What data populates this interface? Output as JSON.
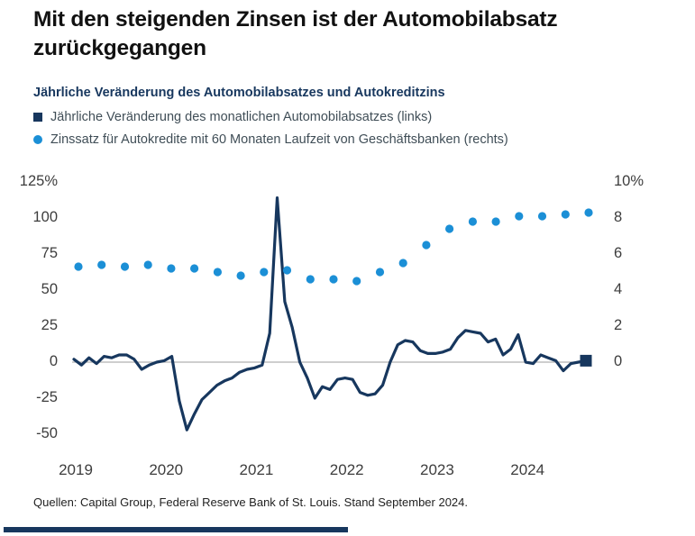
{
  "page": {
    "title": "Mit den steigenden Zinsen ist der Automobilabsatz zurückgegangen",
    "subtitle": "Jährliche Veränderung des Automobilabsatzes und Autokreditzins",
    "legend": [
      {
        "marker": "square",
        "color": "#17375e",
        "label": "Jährliche Veränderung des monatlichen Automobilabsatzes (links)"
      },
      {
        "marker": "circle",
        "color": "#1b8fd6",
        "label": "Zinssatz für Autokredite mit 60 Monaten Laufzeit von Geschäftsbanken (rechts)"
      }
    ],
    "source": "Quellen: Capital Group, Federal Reserve Bank of St. Louis. Stand September 2024.",
    "accent_bar_color": "#17375e"
  },
  "chart_data": {
    "type": "line",
    "title": "Jährliche Veränderung des Automobilabsatzes und Autokreditzins",
    "x_labels": [
      "2019",
      "2020",
      "2021",
      "2022",
      "2023",
      "2024"
    ],
    "left_axis": {
      "ticks": [
        "125%",
        "100",
        "75",
        "50",
        "25",
        "0",
        "-25",
        "-50"
      ],
      "tick_values": [
        125,
        100,
        75,
        50,
        25,
        0,
        -25,
        -50
      ],
      "range": [
        -50,
        125
      ],
      "unit": "%"
    },
    "right_axis": {
      "ticks": [
        "10%",
        "8",
        "6",
        "4",
        "2",
        "0"
      ],
      "tick_values": [
        10,
        8,
        6,
        4,
        2,
        0
      ],
      "range_shown": [
        0,
        10
      ],
      "unit": "%"
    },
    "grid": "zero-line-only",
    "zero_line_color": "#b0b0b0",
    "series": [
      {
        "name": "Jährliche Veränderung des monatlichen Automobilabsatzes (links)",
        "type": "line",
        "axis": "left",
        "color": "#17375e",
        "frequency": "monthly",
        "start": "2019-01",
        "end": "2024-09",
        "end_marker": "square",
        "values": [
          2,
          -2,
          3,
          -1,
          4,
          3,
          5,
          5,
          2,
          -5,
          -2,
          0,
          1,
          4,
          -27,
          -47,
          -36,
          -26,
          -21,
          -16,
          -13,
          -11,
          -7,
          -5,
          -4,
          -2,
          20,
          114,
          42,
          24,
          0,
          -11,
          -25,
          -17,
          -19,
          -12,
          -11,
          -12,
          -21,
          -23,
          -22,
          -16,
          0,
          12,
          15,
          14,
          8,
          6,
          6,
          7,
          9,
          17,
          22,
          21,
          20,
          14,
          16,
          5,
          9,
          19,
          0,
          -1,
          5,
          3,
          1,
          -6,
          -1,
          0,
          1
        ]
      },
      {
        "name": "Zinssatz für Autokredite mit 60 Monaten Laufzeit von Geschäftsbanken (rechts)",
        "type": "scatter",
        "axis": "right",
        "color": "#1b8fd6",
        "frequency": "quarterly",
        "quarters": [
          "2019 Q1",
          "2019 Q2",
          "2019 Q3",
          "2019 Q4",
          "2020 Q1",
          "2020 Q2",
          "2020 Q3",
          "2020 Q4",
          "2021 Q1",
          "2021 Q2",
          "2021 Q3",
          "2021 Q4",
          "2022 Q1",
          "2022 Q2",
          "2022 Q3",
          "2022 Q4",
          "2023 Q1",
          "2023 Q2",
          "2023 Q3",
          "2023 Q4",
          "2024 Q1",
          "2024 Q2",
          "2024 Q3"
        ],
        "values": [
          5.3,
          5.4,
          5.3,
          5.4,
          5.2,
          5.2,
          5.0,
          4.8,
          5.0,
          5.1,
          4.6,
          4.6,
          4.5,
          5.0,
          5.5,
          6.5,
          7.4,
          7.8,
          7.8,
          8.1,
          8.1,
          8.2,
          8.3
        ]
      }
    ]
  }
}
